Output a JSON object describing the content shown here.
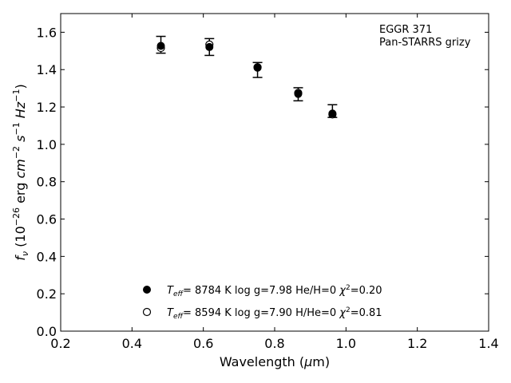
{
  "chart_data": {
    "type": "scatter",
    "xlabel": "Wavelength (μm)",
    "ylabel": "f_ν (10^-26 erg cm^-2 s^-1 Hz^-1)",
    "xlim": [
      0.2,
      1.4
    ],
    "ylim": [
      0.0,
      1.7
    ],
    "x_ticks": [
      0.2,
      0.4,
      0.6,
      0.8,
      1.0,
      1.2,
      1.4
    ],
    "y_ticks": [
      0.0,
      0.2,
      0.4,
      0.6,
      0.8,
      1.0,
      1.2,
      1.4,
      1.6
    ],
    "x_tick_labels": [
      "0.2",
      "0.4",
      "0.6",
      "0.8",
      "1.0",
      "1.2",
      "1.4"
    ],
    "y_tick_labels": [
      "0.0",
      "0.2",
      "0.4",
      "0.6",
      "0.8",
      "1.0",
      "1.2",
      "1.4",
      "1.6"
    ],
    "annotation": [
      "EGGR 371",
      "Pan-STARRS grizy"
    ],
    "observed": {
      "x": [
        0.481,
        0.617,
        0.752,
        0.866,
        0.962
      ],
      "y": [
        1.533,
        1.521,
        1.398,
        1.268,
        1.178
      ],
      "yerr": [
        0.045,
        0.045,
        0.04,
        0.035,
        0.034
      ]
    },
    "series": [
      {
        "name": "Teff= 8784 K log g=7.98 He/H=0 χ²=0.20",
        "marker": "filled-circle",
        "x": [
          0.481,
          0.617,
          0.752,
          0.866,
          0.962
        ],
        "y": [
          1.527,
          1.521,
          1.41,
          1.27,
          1.165
        ]
      },
      {
        "name": "Teff= 8594 K log g=7.90 H/He=0 χ²=0.81",
        "marker": "open-circle",
        "x": [
          0.481,
          0.617,
          0.752,
          0.866,
          0.962
        ],
        "y": [
          1.516,
          1.534,
          1.413,
          1.275,
          1.16
        ]
      }
    ],
    "legend_placement": "lower-center",
    "grid": false
  }
}
